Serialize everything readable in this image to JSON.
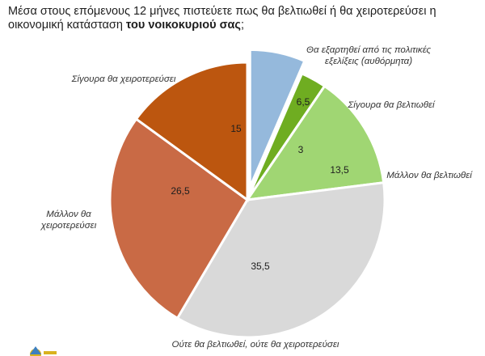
{
  "title": {
    "line1": "Μέσα στους επόμενους 12 μήνες πιστεύετε πως θα βελτιωθεί ή θα χειροτερεύσει η",
    "line2_normal": "οικονομική κατάσταση ",
    "line2_bold": "του νοικοκυριού σας",
    "line2_end": ";"
  },
  "chart_data": {
    "type": "pie",
    "exploded": [
      "Θα εξαρτηθεί από τις πολιτικές εξελίξεις (αυθόρμητα)"
    ],
    "slices": [
      {
        "label": "Θα εξαρτηθεί από τις πολιτικές εξελίξεις (αυθόρμητα)",
        "label_lines": [
          "Θα εξαρτηθεί από τις πολιτικές",
          "εξελίξεις (αυθόρμητα)"
        ],
        "value": 6.5,
        "value_label": "6,5",
        "color": "#95b9dc"
      },
      {
        "label": "Σίγουρα θα βελτιωθεί",
        "label_lines": [
          "Σίγουρα θα βελτιωθεί"
        ],
        "value": 3,
        "value_label": "3",
        "color": "#6fad21"
      },
      {
        "label": "Μάλλον θα βελτιωθεί",
        "label_lines": [
          "Μάλλον θα βελτιωθεί"
        ],
        "value": 13.5,
        "value_label": "13,5",
        "color": "#a0d673"
      },
      {
        "label": "Ούτε θα βελτιωθεί, ούτε θα χειροτερεύσει",
        "label_lines": [
          "Ούτε θα βελτιωθεί, ούτε θα χειροτερεύσει"
        ],
        "value": 35.5,
        "value_label": "35,5",
        "color": "#d9d9d9"
      },
      {
        "label": "Μάλλον θα χειροτερεύσει",
        "label_lines": [
          "Μάλλον θα",
          "χειροτερεύσει"
        ],
        "value": 26.5,
        "value_label": "26,5",
        "color": "#c96a45"
      },
      {
        "label": "Σίγουρα θα χειροτερεύσει",
        "label_lines": [
          "Σίγουρα θα χειροτερεύσει"
        ],
        "value": 15,
        "value_label": "15",
        "color": "#bc560f"
      }
    ]
  }
}
